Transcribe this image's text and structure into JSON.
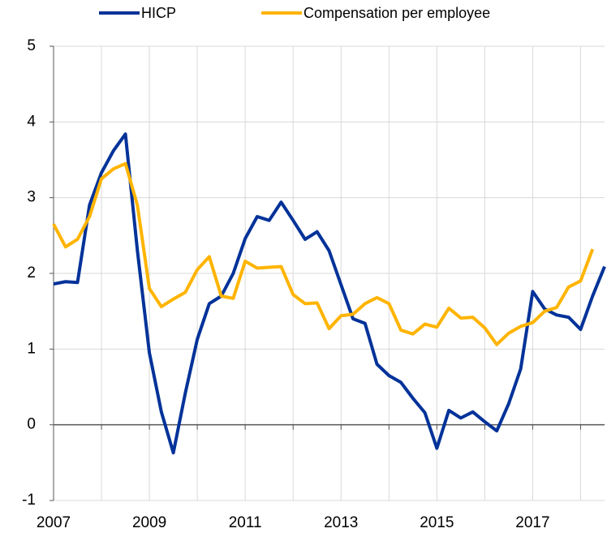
{
  "chart_data": {
    "type": "line",
    "x": [
      2007,
      2007.25,
      2007.5,
      2007.75,
      2008,
      2008.25,
      2008.5,
      2008.75,
      2009,
      2009.25,
      2009.5,
      2009.75,
      2010,
      2010.25,
      2010.5,
      2010.75,
      2011,
      2011.25,
      2011.5,
      2011.75,
      2012,
      2012.25,
      2012.5,
      2012.75,
      2013,
      2013.25,
      2013.5,
      2013.75,
      2014,
      2014.25,
      2014.5,
      2014.75,
      2015,
      2015.25,
      2015.5,
      2015.75,
      2016,
      2016.25,
      2016.5,
      2016.75,
      2017,
      2017.25,
      2017.5,
      2017.75,
      2018,
      2018.25,
      2018.5
    ],
    "series": [
      {
        "name": "HICP",
        "color": "#003299",
        "values": [
          1.86,
          1.89,
          1.88,
          2.9,
          3.33,
          3.62,
          3.84,
          2.3,
          0.95,
          0.17,
          -0.37,
          0.42,
          1.13,
          1.6,
          1.7,
          2.0,
          2.46,
          2.75,
          2.7,
          2.94,
          2.7,
          2.45,
          2.55,
          2.3,
          1.85,
          1.4,
          1.34,
          0.8,
          0.65,
          0.56,
          0.35,
          0.16,
          -0.31,
          0.19,
          0.09,
          0.17,
          0.04,
          -0.08,
          0.28,
          0.74,
          1.76,
          1.53,
          1.45,
          1.42,
          1.26,
          1.7,
          2.09
        ]
      },
      {
        "name": "Compensation per employee",
        "color": "#ffb400",
        "values": [
          2.65,
          2.35,
          2.45,
          2.75,
          3.25,
          3.38,
          3.45,
          2.9,
          1.8,
          1.56,
          1.66,
          1.75,
          2.05,
          2.22,
          1.7,
          1.67,
          2.16,
          2.07,
          2.08,
          2.09,
          1.72,
          1.6,
          1.61,
          1.27,
          1.44,
          1.46,
          1.6,
          1.68,
          1.6,
          1.25,
          1.2,
          1.33,
          1.29,
          1.54,
          1.41,
          1.42,
          1.28,
          1.06,
          1.21,
          1.3,
          1.35,
          1.5,
          1.55,
          1.82,
          1.9,
          2.32,
          null
        ]
      }
    ],
    "xlim": [
      2007,
      2018.5
    ],
    "xticks": [
      2007,
      2009,
      2011,
      2013,
      2015,
      2017
    ],
    "xminor_ticks": [
      2008,
      2010,
      2012,
      2014,
      2016,
      2018
    ],
    "ylim": [
      -1,
      5
    ],
    "yticks": [
      -1,
      0,
      1,
      2,
      3,
      4,
      5
    ],
    "grid": true,
    "legend": "top"
  }
}
